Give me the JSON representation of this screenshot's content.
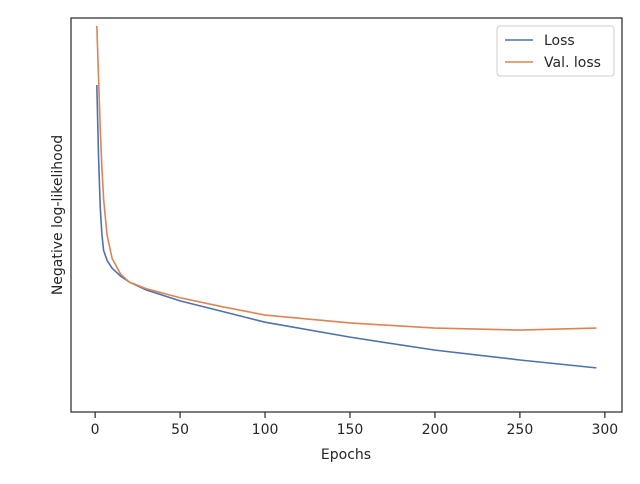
{
  "chart_data": {
    "type": "line",
    "x_label": "Epochs",
    "y_label": "Negative log-likelihood",
    "x": [
      1,
      2,
      3,
      4,
      5,
      7,
      10,
      15,
      20,
      30,
      50,
      75,
      100,
      150,
      200,
      250,
      295
    ],
    "series": [
      {
        "name": "Loss",
        "color": "#4c72b0",
        "values": [
          83,
          65,
          52,
          45,
          41,
          38.5,
          36.5,
          34.5,
          33,
          31,
          28.2,
          25.5,
          22.8,
          19,
          15.7,
          13.2,
          11.2
        ]
      },
      {
        "name": "Val. loss",
        "color": "#dd8452",
        "values": [
          98,
          85,
          72,
          62,
          54,
          45,
          39,
          35,
          33,
          31.3,
          29,
          26.7,
          24.6,
          22.6,
          21.3,
          20.8,
          21.3
        ]
      }
    ],
    "xlim": [
      -14.2,
      310.1
    ],
    "ylim": [
      0,
      100
    ],
    "xticks": [
      0,
      50,
      100,
      150,
      200,
      250,
      300
    ],
    "legend": "upper right"
  }
}
